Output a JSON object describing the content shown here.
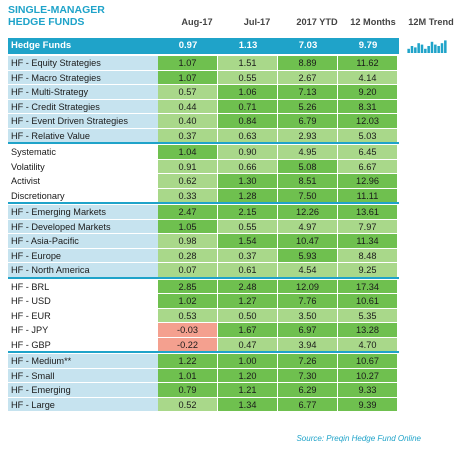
{
  "title_line1": "SINGLE-MANAGER",
  "title_line2": "HEDGE FUNDS",
  "columns": [
    "Aug-17",
    "Jul-17",
    "2017 YTD",
    "12 Months",
    "12M Trend"
  ],
  "source": "Source: Preqin Hedge Fund Online",
  "colors": {
    "accent": "#1fa3c9",
    "label_bg": "#c6e3ef",
    "group_bg": "#ddeef5",
    "green_dark": "#6fc04f",
    "green_light": "#a9d88a",
    "red": "#f4a08f",
    "white": "#ffffff"
  },
  "chart_data": {
    "type": "table",
    "headline": {
      "label": "Hedge Funds",
      "values": [
        "0.97",
        "1.13",
        "7.03",
        "9.79"
      ]
    },
    "trend_values": [
      0.3,
      0.5,
      0.4,
      0.7,
      0.6,
      0.3,
      0.5,
      0.8,
      0.6,
      0.5,
      0.7,
      0.9
    ],
    "groups": [
      {
        "rows": [
          {
            "label": "HF - Equity Strategies",
            "values": [
              "1.07",
              "1.51",
              "8.89",
              "11.62"
            ],
            "shades": [
              "d",
              "l",
              "d",
              "d"
            ]
          },
          {
            "label": "HF - Macro Strategies",
            "values": [
              "1.07",
              "0.55",
              "2.67",
              "4.14"
            ],
            "shades": [
              "d",
              "l",
              "l",
              "l"
            ]
          },
          {
            "label": "HF - Multi-Strategy",
            "values": [
              "0.57",
              "1.06",
              "7.13",
              "9.20"
            ],
            "shades": [
              "l",
              "d",
              "d",
              "d"
            ]
          },
          {
            "label": "HF - Credit Strategies",
            "values": [
              "0.44",
              "0.71",
              "5.26",
              "8.31"
            ],
            "shades": [
              "l",
              "d",
              "d",
              "d"
            ]
          },
          {
            "label": "HF - Event Driven Strategies",
            "values": [
              "0.40",
              "0.84",
              "6.79",
              "12.03"
            ],
            "shades": [
              "l",
              "d",
              "d",
              "d"
            ]
          },
          {
            "label": "HF - Relative Value",
            "values": [
              "0.37",
              "0.63",
              "2.93",
              "5.03"
            ],
            "shades": [
              "l",
              "l",
              "l",
              "l"
            ]
          }
        ]
      },
      {
        "rows": [
          {
            "label": "Systematic",
            "values": [
              "1.04",
              "0.90",
              "4.95",
              "6.45"
            ],
            "shades": [
              "d",
              "l",
              "l",
              "l"
            ]
          },
          {
            "label": "Volatility",
            "values": [
              "0.91",
              "0.66",
              "5.08",
              "6.67"
            ],
            "shades": [
              "l",
              "l",
              "d",
              "l"
            ]
          },
          {
            "label": "Activist",
            "values": [
              "0.62",
              "1.30",
              "8.51",
              "12.96"
            ],
            "shades": [
              "l",
              "d",
              "d",
              "d"
            ]
          },
          {
            "label": "Discretionary",
            "values": [
              "0.33",
              "1.28",
              "7.50",
              "11.11"
            ],
            "shades": [
              "l",
              "d",
              "d",
              "d"
            ]
          }
        ]
      },
      {
        "rows": [
          {
            "label": "HF - Emerging Markets",
            "values": [
              "2.47",
              "2.15",
              "12.26",
              "13.61"
            ],
            "shades": [
              "d",
              "d",
              "d",
              "d"
            ]
          },
          {
            "label": "HF - Developed Markets",
            "values": [
              "1.05",
              "0.55",
              "4.97",
              "7.97"
            ],
            "shades": [
              "d",
              "l",
              "l",
              "l"
            ]
          },
          {
            "label": "HF - Asia-Pacific",
            "values": [
              "0.98",
              "1.54",
              "10.47",
              "11.34"
            ],
            "shades": [
              "l",
              "d",
              "d",
              "d"
            ]
          },
          {
            "label": "HF - Europe",
            "values": [
              "0.28",
              "0.37",
              "5.93",
              "8.48"
            ],
            "shades": [
              "l",
              "l",
              "d",
              "l"
            ]
          },
          {
            "label": "HF - North America",
            "values": [
              "0.07",
              "0.61",
              "4.54",
              "9.25"
            ],
            "shades": [
              "l",
              "l",
              "l",
              "l"
            ]
          }
        ]
      },
      {
        "rows": [
          {
            "label": "HF - BRL",
            "values": [
              "2.85",
              "2.48",
              "12.09",
              "17.34"
            ],
            "shades": [
              "d",
              "d",
              "d",
              "d"
            ]
          },
          {
            "label": "HF - USD",
            "values": [
              "1.02",
              "1.27",
              "7.76",
              "10.61"
            ],
            "shades": [
              "d",
              "d",
              "d",
              "d"
            ]
          },
          {
            "label": "HF - EUR",
            "values": [
              "0.53",
              "0.50",
              "3.50",
              "5.35"
            ],
            "shades": [
              "l",
              "l",
              "l",
              "l"
            ]
          },
          {
            "label": "HF - JPY",
            "values": [
              "-0.03",
              "1.67",
              "6.97",
              "13.28"
            ],
            "shades": [
              "r",
              "d",
              "d",
              "d"
            ]
          },
          {
            "label": "HF - GBP",
            "values": [
              "-0.22",
              "0.47",
              "3.94",
              "4.70"
            ],
            "shades": [
              "r",
              "l",
              "l",
              "l"
            ]
          }
        ]
      },
      {
        "rows": [
          {
            "label": "HF - Medium**",
            "values": [
              "1.22",
              "1.00",
              "7.26",
              "10.67"
            ],
            "shades": [
              "d",
              "d",
              "d",
              "d"
            ]
          },
          {
            "label": "HF - Small",
            "values": [
              "1.01",
              "1.20",
              "7.30",
              "10.27"
            ],
            "shades": [
              "d",
              "d",
              "d",
              "d"
            ]
          },
          {
            "label": "HF - Emerging",
            "values": [
              "0.79",
              "1.21",
              "6.29",
              "9.33"
            ],
            "shades": [
              "d",
              "d",
              "d",
              "d"
            ]
          },
          {
            "label": "HF - Large",
            "values": [
              "0.52",
              "1.34",
              "6.77",
              "9.39"
            ],
            "shades": [
              "l",
              "d",
              "d",
              "d"
            ]
          }
        ]
      }
    ]
  }
}
